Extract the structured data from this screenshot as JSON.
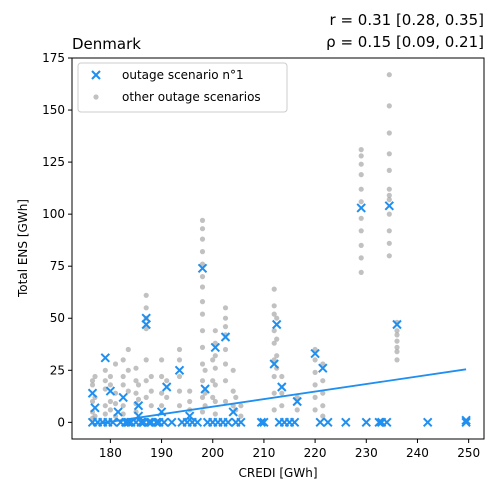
{
  "chart_data": {
    "type": "scatter",
    "title": "Denmark",
    "stats": [
      "r = 0.31 [0.28, 0.35]",
      "ρ = 0.15 [0.09, 0.21]"
    ],
    "xlabel": "CREDI [GWh]",
    "ylabel": "Total ENS [GWh]",
    "xlim": [
      172.5,
      253
    ],
    "ylim": [
      -8,
      175
    ],
    "xticks": [
      180,
      190,
      200,
      210,
      220,
      230,
      240,
      250
    ],
    "yticks": [
      0,
      25,
      50,
      75,
      100,
      125,
      150,
      175
    ],
    "legend_position": "top-left",
    "colors": {
      "scenario1": "#1f8ff0",
      "other": "#a6a6a6",
      "fit": "#1f8ff0"
    },
    "series": [
      {
        "name": "outage scenario n°1",
        "marker": "x",
        "points": [
          [
            176.5,
            14
          ],
          [
            177,
            7
          ],
          [
            176.5,
            0
          ],
          [
            177.5,
            0
          ],
          [
            178.5,
            0
          ],
          [
            179,
            31
          ],
          [
            179.5,
            0
          ],
          [
            180,
            15
          ],
          [
            180.5,
            0
          ],
          [
            181.5,
            5
          ],
          [
            182,
            0
          ],
          [
            182.5,
            12
          ],
          [
            183,
            0
          ],
          [
            183.5,
            0
          ],
          [
            184,
            0
          ],
          [
            185,
            0
          ],
          [
            185.5,
            8
          ],
          [
            185.5,
            3
          ],
          [
            186,
            0
          ],
          [
            186.5,
            0
          ],
          [
            187,
            50
          ],
          [
            187,
            47
          ],
          [
            187.5,
            0
          ],
          [
            188,
            0
          ],
          [
            189,
            0
          ],
          [
            189.5,
            0
          ],
          [
            190,
            5
          ],
          [
            190.5,
            0
          ],
          [
            191,
            17
          ],
          [
            192,
            0
          ],
          [
            193.5,
            25
          ],
          [
            194,
            0
          ],
          [
            195,
            0
          ],
          [
            195.5,
            3
          ],
          [
            196,
            0
          ],
          [
            197,
            0
          ],
          [
            198,
            74
          ],
          [
            198.5,
            16
          ],
          [
            199,
            0
          ],
          [
            200,
            0
          ],
          [
            200.5,
            36
          ],
          [
            201,
            0
          ],
          [
            202,
            0
          ],
          [
            202.5,
            41
          ],
          [
            203,
            0
          ],
          [
            204,
            5
          ],
          [
            204.5,
            0
          ],
          [
            205.5,
            0
          ],
          [
            209.5,
            0
          ],
          [
            210,
            0
          ],
          [
            212,
            28
          ],
          [
            212.5,
            47
          ],
          [
            213,
            0
          ],
          [
            213.5,
            17
          ],
          [
            214,
            0
          ],
          [
            215,
            0
          ],
          [
            216,
            0
          ],
          [
            216.5,
            10
          ],
          [
            220,
            33
          ],
          [
            221,
            0
          ],
          [
            221.5,
            26
          ],
          [
            222.5,
            0
          ],
          [
            226,
            0
          ],
          [
            229,
            103
          ],
          [
            230,
            0
          ],
          [
            232.5,
            0
          ],
          [
            233,
            0
          ],
          [
            234,
            0
          ],
          [
            234.5,
            104
          ],
          [
            236,
            47
          ],
          [
            242,
            0
          ],
          [
            249.5,
            0
          ],
          [
            249.5,
            1
          ]
        ]
      },
      {
        "name": "other outage scenarios",
        "marker": "o",
        "points": [
          [
            176.5,
            20
          ],
          [
            176.5,
            18
          ],
          [
            176.5,
            10
          ],
          [
            176.5,
            5
          ],
          [
            176.5,
            2
          ],
          [
            177,
            22
          ],
          [
            177,
            12
          ],
          [
            177,
            3
          ],
          [
            179,
            25
          ],
          [
            179,
            20
          ],
          [
            179,
            16
          ],
          [
            179,
            8
          ],
          [
            179,
            4
          ],
          [
            180,
            22
          ],
          [
            180,
            18
          ],
          [
            180,
            10
          ],
          [
            180,
            6
          ],
          [
            181,
            28
          ],
          [
            181,
            14
          ],
          [
            181,
            9
          ],
          [
            181,
            3
          ],
          [
            182.5,
            30
          ],
          [
            182.5,
            22
          ],
          [
            182.5,
            18
          ],
          [
            182.5,
            8
          ],
          [
            182.5,
            4
          ],
          [
            183.5,
            35
          ],
          [
            183.5,
            25
          ],
          [
            183.5,
            15
          ],
          [
            185,
            26
          ],
          [
            185,
            20
          ],
          [
            185,
            14
          ],
          [
            185,
            9
          ],
          [
            185,
            5
          ],
          [
            185.5,
            18
          ],
          [
            185.5,
            11
          ],
          [
            187,
            61
          ],
          [
            187,
            55
          ],
          [
            187,
            50
          ],
          [
            187,
            45
          ],
          [
            187,
            30
          ],
          [
            187,
            20
          ],
          [
            187,
            12
          ],
          [
            188,
            22
          ],
          [
            188,
            15
          ],
          [
            188,
            8
          ],
          [
            190,
            30
          ],
          [
            190,
            22
          ],
          [
            190,
            14
          ],
          [
            190,
            8
          ],
          [
            191,
            20
          ],
          [
            191,
            12
          ],
          [
            193.5,
            35
          ],
          [
            193.5,
            30
          ],
          [
            193.5,
            22
          ],
          [
            193.5,
            15
          ],
          [
            193.5,
            8
          ],
          [
            195.5,
            15
          ],
          [
            195.5,
            10
          ],
          [
            195.5,
            6
          ],
          [
            198,
            97
          ],
          [
            198,
            93
          ],
          [
            198,
            88
          ],
          [
            198,
            82
          ],
          [
            198,
            76
          ],
          [
            198,
            70
          ],
          [
            198,
            65
          ],
          [
            198,
            58
          ],
          [
            198,
            52
          ],
          [
            198,
            44
          ],
          [
            198,
            36
          ],
          [
            198,
            28
          ],
          [
            198,
            20
          ],
          [
            198,
            12
          ],
          [
            198,
            5
          ],
          [
            198.5,
            25
          ],
          [
            198.5,
            14
          ],
          [
            198.5,
            8
          ],
          [
            200,
            30
          ],
          [
            200,
            20
          ],
          [
            200,
            12
          ],
          [
            200.5,
            44
          ],
          [
            200.5,
            38
          ],
          [
            200.5,
            32
          ],
          [
            200.5,
            26
          ],
          [
            200.5,
            18
          ],
          [
            200.5,
            10
          ],
          [
            200.5,
            4
          ],
          [
            202.5,
            55
          ],
          [
            202.5,
            50
          ],
          [
            202.5,
            46
          ],
          [
            202.5,
            42
          ],
          [
            202.5,
            35
          ],
          [
            202.5,
            28
          ],
          [
            202.5,
            20
          ],
          [
            202.5,
            10
          ],
          [
            204,
            25
          ],
          [
            204,
            15
          ],
          [
            204,
            8
          ],
          [
            204.5,
            12
          ],
          [
            204.5,
            6
          ],
          [
            205.5,
            8
          ],
          [
            205.5,
            3
          ],
          [
            212,
            64
          ],
          [
            212,
            56
          ],
          [
            212,
            52
          ],
          [
            212,
            44
          ],
          [
            212,
            38
          ],
          [
            212,
            30
          ],
          [
            212,
            22
          ],
          [
            212,
            14
          ],
          [
            212,
            6
          ],
          [
            212.5,
            50
          ],
          [
            212.5,
            40
          ],
          [
            212.5,
            32
          ],
          [
            212.5,
            26
          ],
          [
            213.5,
            22
          ],
          [
            213.5,
            14
          ],
          [
            213.5,
            8
          ],
          [
            216.5,
            12
          ],
          [
            216.5,
            6
          ],
          [
            220,
            35
          ],
          [
            220,
            30
          ],
          [
            220,
            24
          ],
          [
            220,
            18
          ],
          [
            220,
            12
          ],
          [
            220,
            6
          ],
          [
            221.5,
            28
          ],
          [
            221.5,
            20
          ],
          [
            221.5,
            14
          ],
          [
            221.5,
            8
          ],
          [
            221.5,
            3
          ],
          [
            229,
            131
          ],
          [
            229,
            128
          ],
          [
            229,
            124
          ],
          [
            229,
            119
          ],
          [
            229,
            112
          ],
          [
            229,
            106
          ],
          [
            229,
            98
          ],
          [
            229,
            92
          ],
          [
            229,
            85
          ],
          [
            229,
            79
          ],
          [
            229,
            72
          ],
          [
            234.5,
            167
          ],
          [
            234.5,
            152
          ],
          [
            234.5,
            139
          ],
          [
            234.5,
            129
          ],
          [
            234.5,
            121
          ],
          [
            234.5,
            112
          ],
          [
            234.5,
            109
          ],
          [
            234.5,
            107
          ],
          [
            234.5,
            100
          ],
          [
            234.5,
            92
          ],
          [
            234.5,
            86
          ],
          [
            234.5,
            80
          ],
          [
            236,
            48
          ],
          [
            236,
            44
          ],
          [
            236,
            42
          ],
          [
            236,
            39
          ],
          [
            236,
            36
          ],
          [
            236,
            34
          ],
          [
            236,
            30
          ]
        ]
      }
    ],
    "fit_line": {
      "x": [
        176.5,
        249.5
      ],
      "y": [
        -1,
        25.5
      ]
    }
  }
}
